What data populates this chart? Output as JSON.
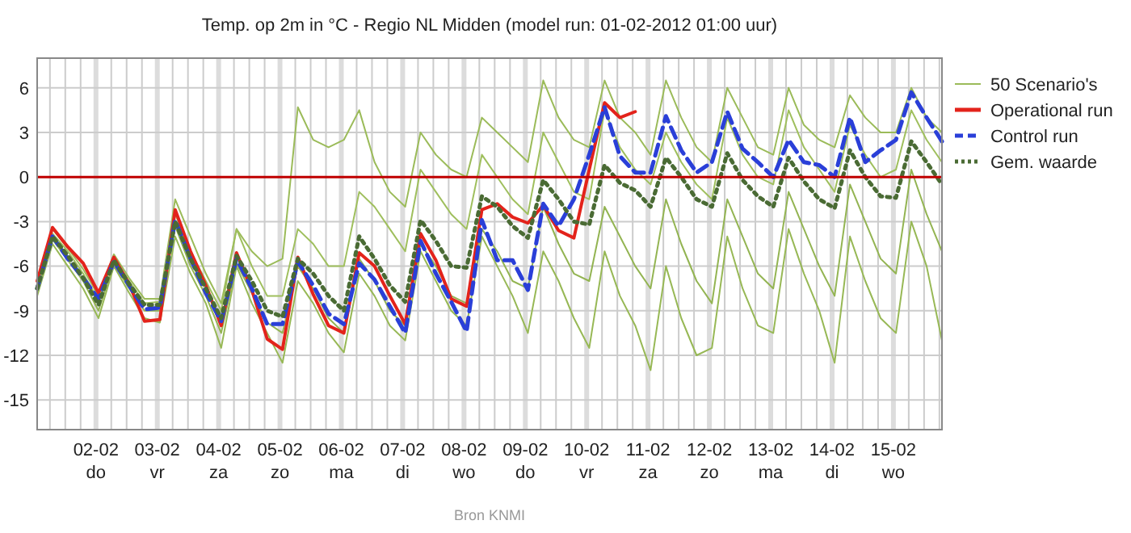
{
  "chart_data": {
    "type": "line",
    "title": "Temp. op 2m in °C - Regio NL Midden (model run: 01-02-2012 01:00 uur)",
    "x": [
      "2012-02-01T01:00",
      "2012-02-01T07:00",
      "2012-02-01T13:00",
      "2012-02-01T19:00",
      "2012-02-02T01:00",
      "2012-02-02T07:00",
      "2012-02-02T13:00",
      "2012-02-02T19:00",
      "2012-02-03T01:00",
      "2012-02-03T07:00",
      "2012-02-03T13:00",
      "2012-02-03T19:00",
      "2012-02-04T01:00",
      "2012-02-04T07:00",
      "2012-02-04T13:00",
      "2012-02-04T19:00",
      "2012-02-05T01:00",
      "2012-02-05T07:00",
      "2012-02-05T13:00",
      "2012-02-05T19:00",
      "2012-02-06T01:00",
      "2012-02-06T07:00",
      "2012-02-06T13:00",
      "2012-02-06T19:00",
      "2012-02-07T01:00",
      "2012-02-07T07:00",
      "2012-02-07T13:00",
      "2012-02-07T19:00",
      "2012-02-08T01:00",
      "2012-02-08T07:00",
      "2012-02-08T13:00",
      "2012-02-08T19:00",
      "2012-02-09T01:00",
      "2012-02-09T07:00",
      "2012-02-09T13:00",
      "2012-02-09T19:00",
      "2012-02-10T01:00",
      "2012-02-10T07:00",
      "2012-02-10T13:00",
      "2012-02-10T19:00",
      "2012-02-11T01:00",
      "2012-02-11T07:00",
      "2012-02-11T13:00",
      "2012-02-11T19:00",
      "2012-02-12T01:00",
      "2012-02-12T07:00",
      "2012-02-12T13:00",
      "2012-02-12T19:00",
      "2012-02-13T01:00",
      "2012-02-13T07:00",
      "2012-02-13T13:00",
      "2012-02-13T19:00",
      "2012-02-14T01:00",
      "2012-02-14T07:00",
      "2012-02-14T13:00",
      "2012-02-14T19:00",
      "2012-02-15T01:00",
      "2012-02-15T07:00",
      "2012-02-15T13:00",
      "2012-02-15T19:00"
    ],
    "series": [
      {
        "name": "50 Scenario's",
        "color": "#9bbb59",
        "line_style": "solid",
        "values": [
          -7,
          -3.5,
          -4.8,
          -6.2,
          -8,
          -5.2,
          -6.8,
          -8.2,
          -8.2,
          -1.5,
          -4,
          -6.5,
          -8.5,
          -3.5,
          -5,
          -6,
          -5.5,
          4.7,
          2.5,
          2,
          2.5,
          4.5,
          1,
          -1,
          -2,
          3,
          1.5,
          0.5,
          0,
          4,
          3,
          2,
          1,
          6.5,
          4,
          2.5,
          2,
          6.5,
          4,
          3,
          1.5,
          6.5,
          4,
          2,
          1,
          6,
          4,
          2,
          1.5,
          6,
          3.5,
          2.5,
          2,
          5.5,
          4,
          3,
          3,
          6,
          4,
          3
        ]
      },
      {
        "color": "#97b855",
        "line_style": "solid",
        "values": [
          -8,
          -4.5,
          -6,
          -7.5,
          -9.5,
          -6,
          -7.8,
          -9.5,
          -9.8,
          -4,
          -6.5,
          -8.5,
          -11.5,
          -6,
          -8.5,
          -10.5,
          -12.5,
          -7,
          -8.5,
          -10.5,
          -11.8,
          -6.5,
          -8,
          -10,
          -11,
          -5,
          -7,
          -9,
          -10,
          -4,
          -6,
          -8,
          -10.5,
          -5,
          -7,
          -9.5,
          -11.5,
          -5,
          -8,
          -10,
          -13,
          -6,
          -9.5,
          -12,
          -11.5,
          -4,
          -7.5,
          -10,
          -10.5,
          -3.5,
          -6.5,
          -9,
          -12.5,
          -4,
          -7,
          -9.5,
          -10.5,
          -3,
          -6,
          -11
        ]
      },
      {
        "color": "#9fbf5d",
        "line_style": "solid",
        "values": [
          -7.2,
          -3.8,
          -5,
          -6.5,
          -8.3,
          -5.5,
          -7,
          -8.5,
          -8.4,
          -2.5,
          -5,
          -7,
          -9,
          -3.5,
          -6,
          -8,
          -8,
          -3.5,
          -4.5,
          -6,
          -6,
          -1,
          -2,
          -3.5,
          -5,
          0.5,
          -1,
          -2.5,
          -3.5,
          1.5,
          0,
          -1.5,
          -2.5,
          3,
          1,
          -1,
          -1.5,
          4.5,
          2,
          0.5,
          -0.5,
          3,
          1,
          -0.5,
          -1.5,
          4,
          1.5,
          0,
          -0.5,
          4.5,
          2,
          0.5,
          -1,
          3.5,
          1.5,
          0,
          0.5,
          4.5,
          2.5,
          1
        ]
      },
      {
        "color": "#93b452",
        "line_style": "solid",
        "values": [
          -7.8,
          -4.2,
          -5.6,
          -7,
          -9,
          -5.8,
          -7.5,
          -9,
          -9,
          -3.3,
          -6,
          -8,
          -10.5,
          -5.8,
          -7.8,
          -9.8,
          -10.5,
          -6,
          -7.5,
          -9.5,
          -10.5,
          -5.5,
          -7,
          -9,
          -10,
          -4.5,
          -6,
          -8,
          -8.5,
          -3.5,
          -5,
          -7,
          -7.5,
          -2,
          -4.5,
          -6.5,
          -7,
          -2,
          -4,
          -6,
          -7.5,
          -1.5,
          -4.5,
          -7,
          -8.5,
          -1.5,
          -4,
          -6.5,
          -7.5,
          -1,
          -3.5,
          -6,
          -8,
          -0.5,
          -3,
          -5.5,
          -6.5,
          0.5,
          -2.5,
          -5
        ]
      },
      {
        "name": "Operational run",
        "color": "#e3231b",
        "line_style": "solid",
        "x": [
          "2012-02-01T01:00",
          "2012-02-01T07:00",
          "2012-02-01T13:00",
          "2012-02-01T19:00",
          "2012-02-02T01:00",
          "2012-02-02T07:00",
          "2012-02-02T13:00",
          "2012-02-02T19:00",
          "2012-02-03T01:00",
          "2012-02-03T07:00",
          "2012-02-03T13:00",
          "2012-02-03T19:00",
          "2012-02-04T01:00",
          "2012-02-04T07:00",
          "2012-02-04T13:00",
          "2012-02-04T19:00",
          "2012-02-05T01:00",
          "2012-02-05T07:00",
          "2012-02-05T13:00",
          "2012-02-05T19:00",
          "2012-02-06T01:00",
          "2012-02-06T07:00",
          "2012-02-06T13:00",
          "2012-02-06T19:00",
          "2012-02-07T01:00",
          "2012-02-07T07:00",
          "2012-02-07T13:00",
          "2012-02-07T19:00",
          "2012-02-08T01:00",
          "2012-02-08T07:00",
          "2012-02-08T13:00",
          "2012-02-08T19:00",
          "2012-02-09T01:00",
          "2012-02-09T07:00",
          "2012-02-09T13:00",
          "2012-02-09T19:00",
          "2012-02-10T01:00",
          "2012-02-10T07:00",
          "2012-02-10T13:00",
          "2012-02-10T19:00"
        ],
        "values": [
          -7,
          -3.4,
          -4.7,
          -5.8,
          -7.8,
          -5.4,
          -7.2,
          -9.7,
          -9.6,
          -2.2,
          -5,
          -7.3,
          -10,
          -5.1,
          -7.6,
          -10.9,
          -11.6,
          -5.4,
          -7.9,
          -10,
          -10.5,
          -5.1,
          -6,
          -8,
          -9.9,
          -3.8,
          -5.6,
          -8.2,
          -8.7,
          -2.2,
          -1.8,
          -2.7,
          -3.1,
          -1.9,
          -3.6,
          -4.1,
          0.5,
          5,
          4,
          4.4
        ]
      },
      {
        "name": "Control run",
        "color": "#2a3fd8",
        "line_style": "dashed",
        "values": [
          -7.5,
          -4,
          -5.5,
          -6.8,
          -8.2,
          -5.7,
          -7.3,
          -8.9,
          -8.8,
          -2.9,
          -5.5,
          -7.8,
          -9.7,
          -5.5,
          -7.5,
          -9.9,
          -9.9,
          -5.7,
          -7.3,
          -9.2,
          -9.9,
          -5.8,
          -6.9,
          -8.7,
          -10.5,
          -4.3,
          -6.5,
          -8.4,
          -10.4,
          -2.9,
          -5.6,
          -5.6,
          -7.6,
          -1.8,
          -3.3,
          -1.5,
          1.5,
          4.7,
          1.4,
          0.3,
          0.3,
          4.1,
          1.8,
          0.3,
          1,
          4.4,
          1.9,
          1,
          0,
          2.5,
          1,
          0.8,
          0,
          4,
          1,
          1.8,
          2.5,
          5.7,
          4,
          2.4
        ]
      },
      {
        "name": "Gem. waarde",
        "color": "#4a6b34",
        "line_style": "dotted",
        "values": [
          -7.5,
          -4,
          -5.3,
          -6.8,
          -8.6,
          -5.6,
          -7.2,
          -8.6,
          -8.6,
          -3,
          -5.5,
          -7.5,
          -9.5,
          -5.3,
          -7,
          -9,
          -9.4,
          -5.5,
          -6.5,
          -8,
          -9,
          -4,
          -5.5,
          -7.3,
          -8.4,
          -2.9,
          -4.3,
          -6,
          -6.1,
          -1.3,
          -2,
          -3.3,
          -4.1,
          -0.2,
          -1.5,
          -3,
          -3.2,
          0.8,
          -0.4,
          -0.9,
          -2,
          1.3,
          0,
          -1.5,
          -2,
          1.6,
          -0.2,
          -1.3,
          -2,
          1.3,
          -0.3,
          -1.5,
          -2.1,
          1.8,
          0,
          -1.3,
          -1.4,
          2.4,
          1,
          -0.5
        ]
      }
    ],
    "xlim": [
      "2012-02-01T01:00",
      "2012-02-15T19:00"
    ],
    "xticks": [
      {
        "value": "2012-02-01T06:00",
        "label": null
      },
      {
        "value": "2012-02-01T12:00",
        "label": null
      },
      {
        "value": "2012-02-01T18:00",
        "label": null
      },
      {
        "value": "2012-02-02T00:00",
        "label": "02-02\ndo"
      },
      {
        "value": "2012-02-02T06:00",
        "label": null
      },
      {
        "value": "2012-02-02T12:00",
        "label": null
      },
      {
        "value": "2012-02-02T18:00",
        "label": null
      },
      {
        "value": "2012-02-03T00:00",
        "label": "03-02\nvr"
      },
      {
        "value": "2012-02-03T06:00",
        "label": null
      },
      {
        "value": "2012-02-03T12:00",
        "label": null
      },
      {
        "value": "2012-02-03T18:00",
        "label": null
      },
      {
        "value": "2012-02-04T00:00",
        "label": "04-02\nza"
      },
      {
        "value": "2012-02-04T06:00",
        "label": null
      },
      {
        "value": "2012-02-04T12:00",
        "label": null
      },
      {
        "value": "2012-02-04T18:00",
        "label": null
      },
      {
        "value": "2012-02-05T00:00",
        "label": "05-02\nzo"
      },
      {
        "value": "2012-02-05T06:00",
        "label": null
      },
      {
        "value": "2012-02-05T12:00",
        "label": null
      },
      {
        "value": "2012-02-05T18:00",
        "label": null
      },
      {
        "value": "2012-02-06T00:00",
        "label": "06-02\nma"
      },
      {
        "value": "2012-02-06T06:00",
        "label": null
      },
      {
        "value": "2012-02-06T12:00",
        "label": null
      },
      {
        "value": "2012-02-06T18:00",
        "label": null
      },
      {
        "value": "2012-02-07T00:00",
        "label": "07-02\ndi"
      },
      {
        "value": "2012-02-07T06:00",
        "label": null
      },
      {
        "value": "2012-02-07T12:00",
        "label": null
      },
      {
        "value": "2012-02-07T18:00",
        "label": null
      },
      {
        "value": "2012-02-08T00:00",
        "label": "08-02\nwo"
      },
      {
        "value": "2012-02-08T06:00",
        "label": null
      },
      {
        "value": "2012-02-08T12:00",
        "label": null
      },
      {
        "value": "2012-02-08T18:00",
        "label": null
      },
      {
        "value": "2012-02-09T00:00",
        "label": "09-02\ndo"
      },
      {
        "value": "2012-02-09T06:00",
        "label": null
      },
      {
        "value": "2012-02-09T12:00",
        "label": null
      },
      {
        "value": "2012-02-09T18:00",
        "label": null
      },
      {
        "value": "2012-02-10T00:00",
        "label": "10-02\nvr"
      },
      {
        "value": "2012-02-10T06:00",
        "label": null
      },
      {
        "value": "2012-02-10T12:00",
        "label": null
      },
      {
        "value": "2012-02-10T18:00",
        "label": null
      },
      {
        "value": "2012-02-11T00:00",
        "label": "11-02\nza"
      },
      {
        "value": "2012-02-11T06:00",
        "label": null
      },
      {
        "value": "2012-02-11T12:00",
        "label": null
      },
      {
        "value": "2012-02-11T18:00",
        "label": null
      },
      {
        "value": "2012-02-12T00:00",
        "label": "12-02\nzo"
      },
      {
        "value": "2012-02-12T06:00",
        "label": null
      },
      {
        "value": "2012-02-12T12:00",
        "label": null
      },
      {
        "value": "2012-02-12T18:00",
        "label": null
      },
      {
        "value": "2012-02-13T00:00",
        "label": "13-02\nma"
      },
      {
        "value": "2012-02-13T06:00",
        "label": null
      },
      {
        "value": "2012-02-13T12:00",
        "label": null
      },
      {
        "value": "2012-02-13T18:00",
        "label": null
      },
      {
        "value": "2012-02-14T00:00",
        "label": "14-02\ndi"
      },
      {
        "value": "2012-02-14T06:00",
        "label": null
      },
      {
        "value": "2012-02-14T12:00",
        "label": null
      },
      {
        "value": "2012-02-14T18:00",
        "label": null
      },
      {
        "value": "2012-02-15T00:00",
        "label": "15-02\nwo"
      },
      {
        "value": "2012-02-15T06:00",
        "label": null
      },
      {
        "value": "2012-02-15T12:00",
        "label": null
      },
      {
        "value": "2012-02-15T18:00",
        "label": null
      }
    ],
    "ylim": [
      -17,
      8
    ],
    "yticks": [
      -15,
      -12,
      -9,
      -6,
      -3,
      0,
      3,
      6
    ],
    "ref_lines": [
      {
        "axis": "y",
        "value": 0,
        "color": "#c00000"
      }
    ],
    "grid": true,
    "legend": "right",
    "marker": "none",
    "annotations": [
      "Bron KNMI"
    ]
  }
}
